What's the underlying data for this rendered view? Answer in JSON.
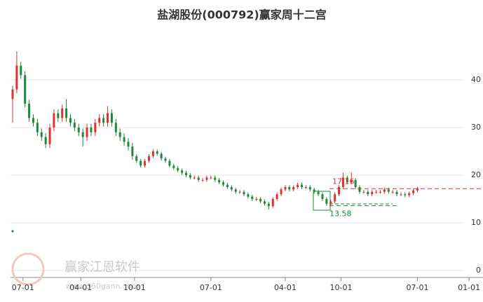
{
  "chart_data": {
    "type": "candlestick",
    "title": "盐湖股份(000792)赢家周十二宫",
    "up_color": "#e0302f",
    "down_color": "#1b8a3a",
    "grid": true,
    "xlim": [
      0,
      112
    ],
    "xticks": [
      {
        "value": 2.5,
        "label": "07-01"
      },
      {
        "value": 16.5,
        "label": "04-01"
      },
      {
        "value": 29.5,
        "label": "10-01"
      },
      {
        "value": 48,
        "label": "07-01"
      },
      {
        "value": 66,
        "label": "04-01"
      },
      {
        "value": 79.5,
        "label": "10-01"
      },
      {
        "value": 98,
        "label": "07-01"
      },
      {
        "value": 110.5,
        "label": "01-01"
      }
    ],
    "ylim": [
      0,
      50
    ],
    "yticks": [
      0,
      10,
      20,
      30,
      40
    ],
    "x": [
      0,
      1,
      2,
      3,
      4,
      5,
      6,
      7,
      8,
      9,
      10,
      11,
      12,
      13,
      14,
      15,
      16,
      17,
      18,
      19,
      20,
      21,
      22,
      23,
      24,
      25,
      26,
      27,
      28,
      29,
      30,
      31,
      32,
      33,
      34,
      35,
      36,
      37,
      38,
      39,
      40,
      41,
      42,
      43,
      44,
      45,
      46,
      47,
      48,
      49,
      50,
      51,
      52,
      53,
      54,
      55,
      56,
      57,
      58,
      59,
      60,
      61,
      62,
      63,
      64,
      65,
      66,
      67,
      68,
      69,
      70,
      71,
      72,
      73,
      74,
      75,
      76,
      77,
      78,
      79,
      80,
      81,
      82,
      83,
      84,
      85,
      86,
      87,
      88,
      89,
      90,
      91,
      92,
      93,
      94,
      95,
      96,
      97,
      98
    ],
    "open": [
      36,
      38,
      43,
      41,
      35,
      32,
      31,
      29,
      28,
      26.5,
      30,
      33,
      32,
      34,
      32,
      31,
      30,
      29,
      28,
      30,
      29,
      31,
      32,
      31,
      33,
      31,
      29,
      28,
      27,
      26,
      24,
      23,
      22,
      23,
      24,
      25,
      24.5,
      23.5,
      23,
      22,
      21.5,
      21,
      20.5,
      20,
      19.5,
      19.5,
      19,
      19,
      19.5,
      19.5,
      19,
      18.5,
      18,
      17.5,
      17,
      16.5,
      16.5,
      16,
      15.5,
      15,
      15,
      14.5,
      14,
      13.5,
      15,
      16,
      17,
      17.5,
      17,
      17.5,
      18,
      17.5,
      17.5,
      17,
      16.5,
      16,
      15,
      14,
      14.5,
      16,
      17.5,
      19.5,
      18.5,
      19,
      17.5,
      16.5,
      16.5,
      16,
      16.5,
      16.5,
      16.5,
      17,
      16.5,
      16.5,
      16,
      16,
      15.8,
      16.2,
      16.8
    ],
    "high": [
      38.8,
      46,
      43.8,
      41.8,
      35.8,
      32.8,
      31.8,
      29.8,
      28.8,
      30.8,
      33.8,
      33.8,
      34.8,
      36,
      32.8,
      31.8,
      30.8,
      29.8,
      30.8,
      30.8,
      31.8,
      32.8,
      32.8,
      34.5,
      33.8,
      31.8,
      29.8,
      28.8,
      27.8,
      26.8,
      24.4,
      23.4,
      23.4,
      24.4,
      25.4,
      25.4,
      24.9,
      23.9,
      23.4,
      22.4,
      21.9,
      21.4,
      20.9,
      20.4,
      19.9,
      19.9,
      19.4,
      19.9,
      19.9,
      19.9,
      19.4,
      18.9,
      18.4,
      17.9,
      17.4,
      16.9,
      16.9,
      16.4,
      15.9,
      15.4,
      15.4,
      14.9,
      14.4,
      15.4,
      16.4,
      17.4,
      17.9,
      17.9,
      17.9,
      18.4,
      18.4,
      17.9,
      17.9,
      17.4,
      16.9,
      16.4,
      15.4,
      14.9,
      16.4,
      17.9,
      20.5,
      19.9,
      20.6,
      19.4,
      17.9,
      16.9,
      16.9,
      16.9,
      16.9,
      16.9,
      17.4,
      17.4,
      16.9,
      16.9,
      16.4,
      16.4,
      16.6,
      17.2,
      17.6
    ],
    "low": [
      31,
      37.2,
      40.2,
      34.2,
      31.2,
      30.2,
      28.2,
      27.2,
      25.7,
      25.7,
      29.2,
      31.2,
      31.2,
      31.2,
      30.2,
      29.2,
      28.2,
      26,
      27.2,
      28.2,
      28.2,
      30.2,
      30.2,
      30.2,
      30.2,
      28.2,
      27.2,
      26.2,
      25.2,
      23.2,
      22.6,
      21.6,
      21.6,
      22.6,
      23.6,
      24.1,
      23.1,
      22.6,
      21.6,
      21.1,
      20.6,
      20.1,
      19.6,
      19.1,
      19.1,
      18.6,
      18.6,
      18.6,
      19.1,
      18.6,
      18.1,
      17.6,
      17.1,
      16.6,
      16.1,
      16.1,
      15.6,
      15.1,
      14.6,
      14.6,
      14.1,
      13.6,
      12.8,
      13.1,
      14.6,
      15.6,
      16.6,
      16.6,
      16.6,
      17.1,
      17.1,
      17.1,
      16.6,
      16.1,
      15.6,
      14.6,
      13.58,
      13.6,
      14.1,
      15.6,
      17.1,
      18.1,
      18.1,
      17.1,
      16.1,
      16.1,
      15.6,
      15.6,
      16.1,
      16.1,
      16.1,
      16.1,
      16.1,
      15.6,
      15.6,
      15.4,
      15.4,
      15.8,
      16.4
    ],
    "close": [
      38,
      43,
      41,
      35,
      32,
      31,
      29,
      28,
      26.5,
      30,
      33,
      32,
      34,
      32,
      31,
      30,
      29,
      28,
      30,
      29,
      31,
      32,
      31,
      33,
      31,
      29,
      28,
      27,
      26,
      24,
      23,
      22,
      23,
      24,
      25,
      24.5,
      23.5,
      23,
      22,
      21.5,
      21,
      20.5,
      20,
      19.5,
      19.5,
      19,
      19,
      19.5,
      19.5,
      19,
      18.5,
      18,
      17.5,
      17,
      16.5,
      16.5,
      16,
      15.5,
      15,
      15,
      14.5,
      14,
      13.5,
      15,
      16,
      17,
      17.5,
      17,
      17.5,
      18,
      17.5,
      17.5,
      17,
      16.5,
      16,
      15,
      14,
      14.5,
      16,
      17.5,
      19.5,
      18.5,
      19,
      17.5,
      16.5,
      16.5,
      16,
      16.5,
      16.5,
      16.5,
      17,
      16.5,
      16.5,
      16,
      16,
      15.8,
      16.2,
      16.8,
      17.2
    ],
    "resistance": 17.16,
    "support": 13.58,
    "watermark": {
      "name": "赢家江恩软件",
      "url": "www.360gann.com"
    }
  }
}
